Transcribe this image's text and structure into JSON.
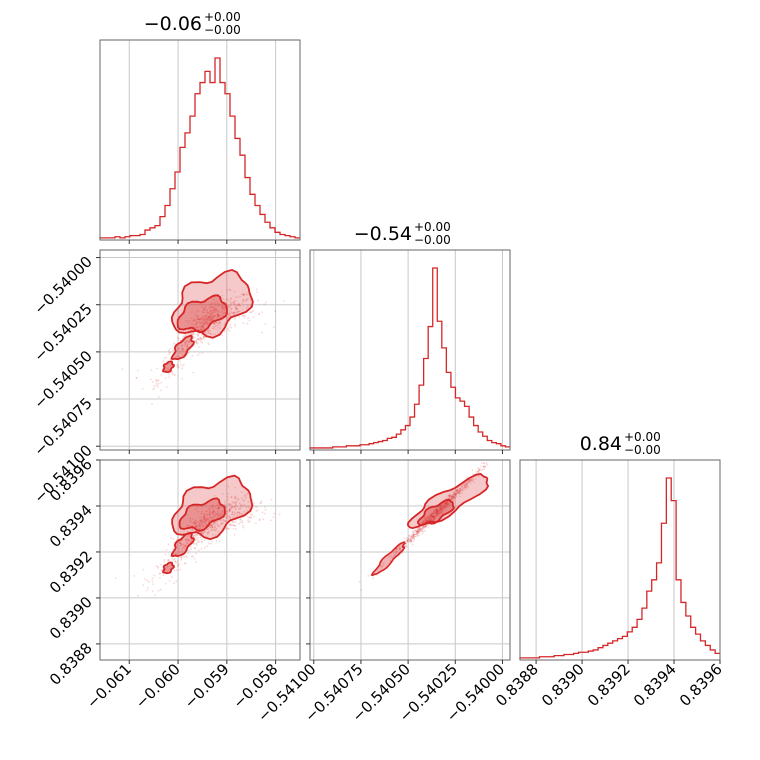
{
  "chart_data": {
    "type": "corner",
    "color": "#d62728",
    "parameters": [
      {
        "title": "−0.06",
        "title_plus": "+0.00",
        "title_minus": "−0.00"
      },
      {
        "title": "−0.54",
        "title_plus": "+0.00",
        "title_minus": "−0.00"
      },
      {
        "title": "0.84",
        "title_plus": "+0.00",
        "title_minus": "−0.00"
      }
    ],
    "axes": {
      "p0": {
        "lim": [
          -0.0616,
          -0.0575
        ],
        "ticks": [
          -0.061,
          -0.06,
          -0.059,
          -0.058
        ],
        "tick_labels": [
          "−0.061",
          "−0.060",
          "−0.059",
          "−0.058"
        ]
      },
      "p1": {
        "lim": [
          -0.54102,
          -0.53996
        ],
        "ticks": [
          -0.541,
          -0.54075,
          -0.5405,
          -0.54025,
          -0.54
        ],
        "tick_labels": [
          "−0.54100",
          "−0.54075",
          "−0.54050",
          "−0.54025",
          "−0.54000"
        ]
      },
      "p2": {
        "lim": [
          0.83873,
          0.8396
        ],
        "ticks": [
          0.8388,
          0.839,
          0.8392,
          0.8394,
          0.8396
        ],
        "tick_labels": [
          "0.8388",
          "0.8390",
          "0.8392",
          "0.8394",
          "0.8396"
        ]
      }
    },
    "histograms": {
      "p0": {
        "start": -0.0616,
        "end": -0.0575,
        "counts": [
          1,
          1,
          1,
          2,
          1,
          2,
          3,
          3,
          4,
          8,
          10,
          12,
          20,
          30,
          45,
          60,
          82,
          95,
          110,
          130,
          140,
          150,
          140,
          162,
          140,
          130,
          110,
          90,
          75,
          55,
          40,
          30,
          22,
          15,
          10,
          6,
          4,
          3,
          2,
          1
        ]
      },
      "p1": {
        "start": -0.54102,
        "end": -0.53996,
        "counts": [
          1,
          1,
          1,
          1,
          1,
          2,
          2,
          2,
          3,
          3,
          3,
          4,
          4,
          5,
          6,
          7,
          8,
          10,
          11,
          14,
          18,
          22,
          30,
          42,
          60,
          85,
          115,
          170,
          120,
          95,
          72,
          58,
          48,
          45,
          40,
          30,
          22,
          16,
          12,
          8,
          6,
          5,
          3,
          2
        ]
      },
      "p2": {
        "start": 0.83873,
        "end": 0.8396,
        "counts": [
          1,
          1,
          1,
          1,
          2,
          2,
          2,
          3,
          3,
          4,
          4,
          5,
          6,
          6,
          7,
          8,
          10,
          12,
          14,
          16,
          18,
          20,
          24,
          28,
          35,
          45,
          60,
          70,
          85,
          120,
          160,
          140,
          70,
          50,
          38,
          28,
          22,
          16,
          12,
          8,
          5
        ]
      }
    },
    "pairs": [
      {
        "x": "p0",
        "y": "p1",
        "trend": "rising then flattening"
      },
      {
        "x": "p0",
        "y": "p2",
        "trend": "rising then flattening"
      },
      {
        "x": "p1",
        "y": "p2",
        "trend": "linear positive"
      }
    ],
    "grid": true
  }
}
